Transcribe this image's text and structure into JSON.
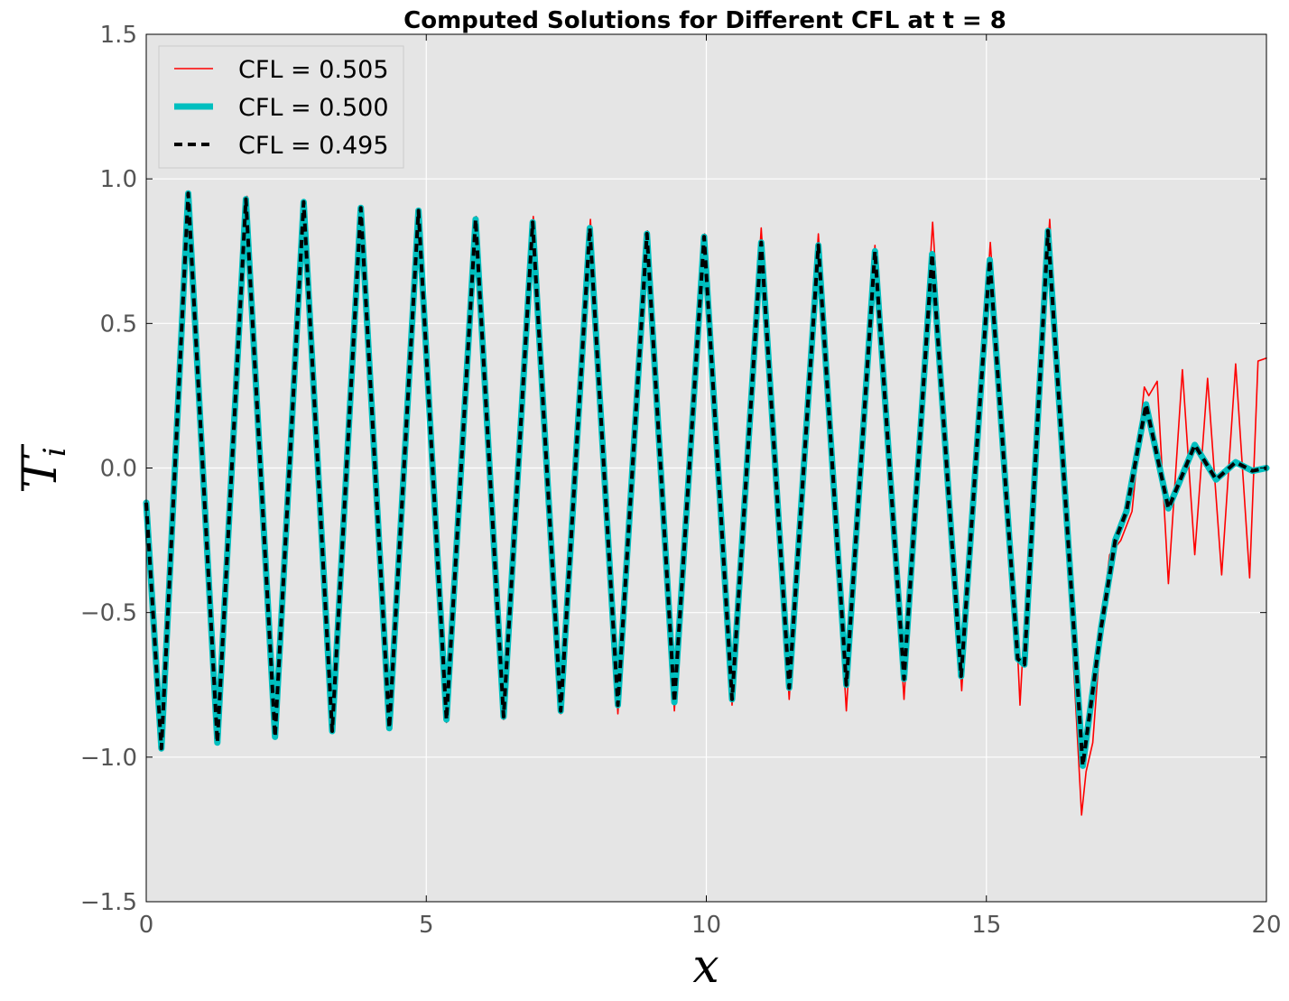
{
  "chart_data": {
    "type": "line",
    "title": "Computed Solutions for Different CFL at t = 8",
    "xlabel": "x",
    "ylabel": "T_i",
    "xlim": [
      0,
      20
    ],
    "ylim": [
      -1.5,
      1.5
    ],
    "xticks": [
      0,
      5,
      10,
      15,
      20
    ],
    "xtick_labels": [
      "0",
      "5",
      "10",
      "15",
      "20"
    ],
    "yticks": [
      -1.5,
      -1.0,
      -0.5,
      0.0,
      0.5,
      1.0,
      1.5
    ],
    "ytick_labels": [
      "−1.5",
      "−1.0",
      "−0.5",
      "0.0",
      "0.5",
      "1.0",
      "1.5"
    ],
    "grid": true,
    "legend_position": "top-left",
    "background": "#e5e5e5",
    "series": [
      {
        "name": "CFL = 0.505",
        "color": "#ff0000",
        "style": "solid-thin",
        "x": [
          0.0,
          0.27,
          0.78,
          1.28,
          1.8,
          2.3,
          2.83,
          3.32,
          3.84,
          4.34,
          4.87,
          5.36,
          5.89,
          6.38,
          6.91,
          7.4,
          7.93,
          8.42,
          8.95,
          9.43,
          9.97,
          10.46,
          10.98,
          11.48,
          12.0,
          12.5,
          13.01,
          13.53,
          14.04,
          14.56,
          15.07,
          15.53,
          15.6,
          15.67,
          16.13,
          16.7,
          16.78,
          16.9,
          17.05,
          17.2,
          17.4,
          17.6,
          17.82,
          17.9,
          18.05,
          18.25,
          18.5,
          18.72,
          18.95,
          19.2,
          19.45,
          19.7,
          19.85,
          20.0
        ],
        "y": [
          -0.12,
          -0.97,
          0.95,
          -0.95,
          0.94,
          -0.93,
          0.92,
          -0.91,
          0.9,
          -0.9,
          0.89,
          -0.88,
          0.87,
          -0.87,
          0.87,
          -0.85,
          0.86,
          -0.85,
          0.82,
          -0.84,
          0.81,
          -0.82,
          0.83,
          -0.8,
          0.81,
          -0.84,
          0.77,
          -0.8,
          0.85,
          -0.77,
          0.78,
          -0.52,
          -0.82,
          -0.57,
          0.86,
          -1.2,
          -1.05,
          -0.95,
          -0.55,
          -0.3,
          -0.25,
          -0.15,
          0.28,
          0.25,
          0.3,
          -0.4,
          0.34,
          -0.3,
          0.31,
          -0.37,
          0.36,
          -0.38,
          0.37,
          0.38
        ]
      },
      {
        "name": "CFL = 0.500",
        "color": "#00bfbf",
        "style": "solid-thick",
        "x": [
          0.0,
          0.27,
          0.75,
          1.27,
          1.78,
          2.3,
          2.81,
          3.32,
          3.83,
          4.34,
          4.86,
          5.36,
          5.88,
          6.38,
          6.9,
          7.4,
          7.92,
          8.42,
          8.94,
          9.43,
          9.96,
          10.46,
          10.98,
          11.48,
          12.0,
          12.5,
          13.01,
          13.53,
          14.03,
          14.55,
          15.06,
          15.56,
          15.68,
          16.1,
          16.72,
          17.05,
          17.3,
          17.5,
          17.85,
          18.25,
          18.72,
          19.1,
          19.45,
          19.75,
          20.0
        ],
        "y": [
          -0.12,
          -0.97,
          0.95,
          -0.95,
          0.93,
          -0.93,
          0.92,
          -0.91,
          0.9,
          -0.9,
          0.89,
          -0.87,
          0.86,
          -0.86,
          0.85,
          -0.84,
          0.83,
          -0.82,
          0.81,
          -0.81,
          0.8,
          -0.8,
          0.78,
          -0.76,
          0.77,
          -0.75,
          0.75,
          -0.73,
          0.74,
          -0.72,
          0.72,
          -0.66,
          -0.68,
          0.82,
          -1.03,
          -0.55,
          -0.25,
          -0.15,
          0.22,
          -0.14,
          0.08,
          -0.04,
          0.02,
          -0.01,
          0.0
        ]
      },
      {
        "name": "CFL = 0.495",
        "color": "#000000",
        "style": "dashed",
        "x": [
          0.0,
          0.27,
          0.75,
          1.27,
          1.78,
          2.3,
          2.81,
          3.32,
          3.83,
          4.34,
          4.86,
          5.36,
          5.88,
          6.38,
          6.9,
          7.4,
          7.92,
          8.42,
          8.94,
          9.43,
          9.96,
          10.46,
          10.98,
          11.48,
          12.0,
          12.5,
          13.01,
          13.53,
          14.03,
          14.55,
          15.06,
          15.56,
          15.68,
          16.1,
          16.72,
          17.05,
          17.3,
          17.5,
          17.85,
          18.25,
          18.72,
          19.1,
          19.45,
          19.75,
          20.0
        ],
        "y": [
          -0.12,
          -0.97,
          0.95,
          -0.95,
          0.93,
          -0.93,
          0.92,
          -0.91,
          0.9,
          -0.9,
          0.89,
          -0.87,
          0.86,
          -0.86,
          0.85,
          -0.84,
          0.83,
          -0.82,
          0.81,
          -0.81,
          0.8,
          -0.8,
          0.78,
          -0.76,
          0.77,
          -0.75,
          0.75,
          -0.73,
          0.74,
          -0.72,
          0.72,
          -0.66,
          -0.68,
          0.82,
          -1.03,
          -0.55,
          -0.25,
          -0.15,
          0.22,
          -0.14,
          0.08,
          -0.04,
          0.02,
          -0.01,
          0.0
        ]
      }
    ]
  }
}
